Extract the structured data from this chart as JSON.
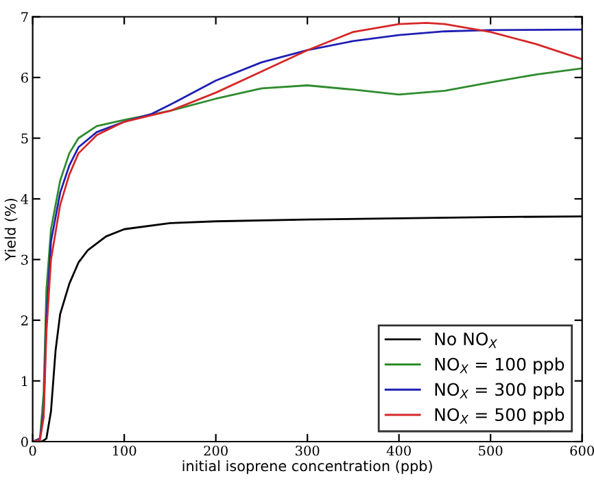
{
  "chart_data": {
    "type": "line",
    "xlabel": "initial isoprene concentration (ppb)",
    "ylabel": "Yield (%)",
    "xlim": [
      0,
      600
    ],
    "ylim": [
      0,
      7
    ],
    "xticks": [
      0,
      100,
      200,
      300,
      400,
      500,
      600
    ],
    "yticks": [
      0,
      1,
      2,
      3,
      4,
      5,
      6,
      7
    ],
    "grid": false,
    "legend": "bottom right",
    "marker": "none",
    "line_style": "solid",
    "series": [
      {
        "name": "No NO$_{X}$",
        "color": "#000000",
        "x": [
          0,
          10,
          15,
          20,
          25,
          30,
          40,
          50,
          60,
          80,
          100,
          150,
          200,
          300,
          400,
          500,
          600
        ],
        "values": [
          0,
          0,
          0.05,
          0.5,
          1.5,
          2.1,
          2.6,
          2.95,
          3.15,
          3.38,
          3.5,
          3.6,
          3.63,
          3.66,
          3.68,
          3.7,
          3.71
        ]
      },
      {
        "name": "NO$_{X}$ = 100 ppb",
        "color": "#2e8b2e",
        "x": [
          0,
          8,
          12,
          15,
          20,
          30,
          40,
          50,
          70,
          100,
          150,
          200,
          250,
          300,
          350,
          400,
          450,
          500,
          550,
          600
        ],
        "values": [
          0,
          0.05,
          0.8,
          2.5,
          3.5,
          4.3,
          4.75,
          5.0,
          5.2,
          5.3,
          5.45,
          5.65,
          5.82,
          5.87,
          5.8,
          5.72,
          5.78,
          5.92,
          6.05,
          6.15
        ]
      },
      {
        "name": "NO$_{X}$ = 300 ppb",
        "color": "#1f1fb4",
        "x": [
          0,
          8,
          12,
          15,
          20,
          30,
          40,
          50,
          70,
          100,
          130,
          150,
          200,
          250,
          300,
          350,
          400,
          450,
          500,
          600
        ],
        "values": [
          0,
          0.05,
          0.5,
          2.0,
          3.3,
          4.1,
          4.55,
          4.85,
          5.1,
          5.27,
          5.4,
          5.55,
          5.95,
          6.25,
          6.45,
          6.6,
          6.7,
          6.76,
          6.78,
          6.79
        ]
      },
      {
        "name": "NO$_{X}$ = 500 ppb",
        "color": "#d62728",
        "x": [
          0,
          8,
          12,
          15,
          20,
          30,
          40,
          50,
          70,
          100,
          150,
          200,
          250,
          300,
          350,
          400,
          430,
          450,
          500,
          550,
          600
        ],
        "values": [
          0,
          0.03,
          0.4,
          1.8,
          3.0,
          3.9,
          4.4,
          4.75,
          5.05,
          5.27,
          5.45,
          5.75,
          6.1,
          6.45,
          6.75,
          6.88,
          6.9,
          6.88,
          6.75,
          6.55,
          6.3
        ]
      }
    ]
  }
}
